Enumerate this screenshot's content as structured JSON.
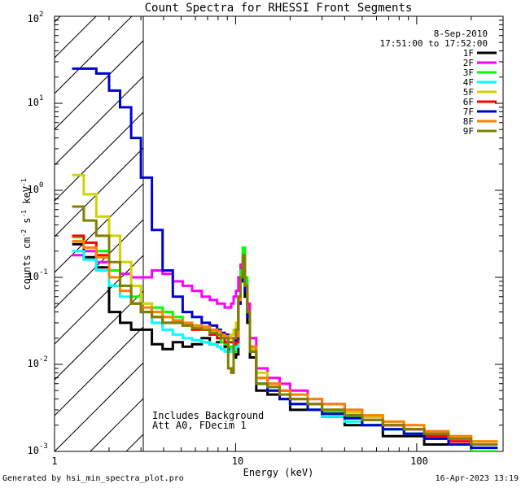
{
  "chart_data": {
    "type": "line",
    "title": "Count Spectra for RHESSI Front Segments",
    "xlabel": "Energy (keV)",
    "ylabel": "counts cm-2 s-1 keV-1",
    "ylabel_parts": {
      "base": "counts cm",
      "exp1": "-2",
      "mid1": " s",
      "exp2": "-1",
      "mid2": " keV",
      "exp3": "-1"
    },
    "x_scale": "log",
    "y_scale": "log",
    "xlim": [
      1,
      300
    ],
    "ylim": [
      0.001,
      100
    ],
    "x_tick_labels": [
      {
        "value": 1,
        "label": "1"
      },
      {
        "value": 10,
        "label": "10"
      },
      {
        "value": 100,
        "label": "100"
      }
    ],
    "y_tick_labels": [
      {
        "value": 0.001,
        "base": "10",
        "exp": "-3"
      },
      {
        "value": 0.01,
        "base": "10",
        "exp": "-2"
      },
      {
        "value": 0.1,
        "base": "10",
        "exp": "-1"
      },
      {
        "value": 1,
        "base": "10",
        "exp": "0"
      },
      {
        "value": 10,
        "base": "10",
        "exp": "1"
      },
      {
        "value": 100,
        "base": "10",
        "exp": "2"
      }
    ],
    "hatched_region_x": [
      1,
      3
    ],
    "date": "8-Sep-2010",
    "time_range": "17:51:00 to 17:52:00",
    "annotations": [
      "Includes Background",
      "Att A0, FDecim 1"
    ],
    "series": [
      {
        "name": "1F",
        "color": "#000000",
        "values": [
          0.24,
          0.17,
          0.13,
          0.04,
          0.03,
          0.025,
          0.025,
          0.017,
          0.015,
          0.018,
          0.016,
          0.017,
          0.02,
          0.017,
          0.018,
          0.02,
          0.016,
          0.015,
          0.015,
          0.012,
          0.013,
          0.05,
          0.09,
          0.11,
          0.06,
          0.03,
          0.012,
          0.005,
          0.0045,
          0.004,
          0.003,
          0.003,
          0.0025,
          0.002,
          0.002,
          0.0015,
          0.0015,
          0.0012,
          0.0012,
          0.001
        ]
      },
      {
        "name": "2F",
        "color": "#ff00ff",
        "values": [
          0.18,
          0.2,
          0.15,
          0.12,
          0.11,
          0.1,
          0.1,
          0.12,
          0.11,
          0.09,
          0.08,
          0.07,
          0.06,
          0.055,
          0.05,
          0.05,
          0.045,
          0.045,
          0.05,
          0.06,
          0.07,
          0.1,
          0.14,
          0.16,
          0.09,
          0.05,
          0.02,
          0.009,
          0.007,
          0.006,
          0.005,
          0.004,
          0.0035,
          0.003,
          0.0025,
          0.002,
          0.0018,
          0.0015,
          0.0013,
          0.0012
        ]
      },
      {
        "name": "3F",
        "color": "#00ff00",
        "values": [
          0.29,
          0.25,
          0.2,
          0.12,
          0.08,
          0.06,
          0.05,
          0.045,
          0.04,
          0.035,
          0.03,
          0.028,
          0.025,
          0.022,
          0.02,
          0.018,
          0.017,
          0.016,
          0.015,
          0.014,
          0.016,
          0.06,
          0.12,
          0.22,
          0.1,
          0.04,
          0.015,
          0.006,
          0.005,
          0.004,
          0.0035,
          0.003,
          0.0028,
          0.0025,
          0.002,
          0.0018,
          0.0016,
          0.0014,
          0.0012,
          0.001
        ]
      },
      {
        "name": "4F",
        "color": "#00ffff",
        "values": [
          0.2,
          0.16,
          0.12,
          0.08,
          0.06,
          0.05,
          0.04,
          0.03,
          0.025,
          0.022,
          0.02,
          0.019,
          0.018,
          0.017,
          0.016,
          0.015,
          0.014,
          0.014,
          0.015,
          0.015,
          0.016,
          0.05,
          0.1,
          0.15,
          0.08,
          0.04,
          0.015,
          0.006,
          0.005,
          0.004,
          0.0035,
          0.003,
          0.0025,
          0.0022,
          0.002,
          0.0018,
          0.0016,
          0.0014,
          0.0012,
          0.0011
        ]
      },
      {
        "name": "5F",
        "color": "#d2d200",
        "values": [
          1.5,
          0.9,
          0.5,
          0.3,
          0.15,
          0.08,
          0.05,
          0.04,
          0.035,
          0.03,
          0.028,
          0.026,
          0.025,
          0.024,
          0.022,
          0.021,
          0.02,
          0.02,
          0.022,
          0.025,
          0.03,
          0.06,
          0.1,
          0.16,
          0.08,
          0.04,
          0.015,
          0.008,
          0.006,
          0.005,
          0.004,
          0.0035,
          0.003,
          0.0028,
          0.0025,
          0.002,
          0.0018,
          0.0016,
          0.0014,
          0.0013
        ]
      },
      {
        "name": "6F",
        "color": "#ff0000",
        "values": [
          0.3,
          0.25,
          0.18,
          0.1,
          0.07,
          0.05,
          0.04,
          0.035,
          0.03,
          0.03,
          0.028,
          0.025,
          0.025,
          0.022,
          0.02,
          0.02,
          0.018,
          0.018,
          0.018,
          0.017,
          0.018,
          0.05,
          0.1,
          0.16,
          0.08,
          0.04,
          0.016,
          0.007,
          0.006,
          0.005,
          0.004,
          0.0035,
          0.003,
          0.0026,
          0.0023,
          0.002,
          0.0018,
          0.0015,
          0.0013,
          0.0012
        ]
      },
      {
        "name": "7F",
        "color": "#0000d2",
        "values": [
          25,
          25,
          22,
          14,
          9,
          4,
          1.4,
          0.35,
          0.12,
          0.06,
          0.04,
          0.035,
          0.03,
          0.028,
          0.025,
          0.023,
          0.022,
          0.02,
          0.02,
          0.019,
          0.02,
          0.05,
          0.09,
          0.13,
          0.07,
          0.035,
          0.014,
          0.006,
          0.005,
          0.004,
          0.0035,
          0.003,
          0.0027,
          0.0024,
          0.002,
          0.0018,
          0.0016,
          0.0014,
          0.0012,
          0.0011
        ]
      },
      {
        "name": "8F",
        "color": "#ff8000",
        "values": [
          0.26,
          0.22,
          0.17,
          0.1,
          0.07,
          0.05,
          0.045,
          0.04,
          0.035,
          0.032,
          0.03,
          0.028,
          0.027,
          0.025,
          0.024,
          0.022,
          0.021,
          0.02,
          0.02,
          0.02,
          0.021,
          0.055,
          0.1,
          0.17,
          0.08,
          0.04,
          0.016,
          0.007,
          0.006,
          0.005,
          0.0045,
          0.004,
          0.0035,
          0.003,
          0.0026,
          0.0022,
          0.002,
          0.0017,
          0.0015,
          0.0013
        ]
      },
      {
        "name": "9F",
        "color": "#808000",
        "values": [
          0.65,
          0.45,
          0.3,
          0.15,
          0.08,
          0.05,
          0.04,
          0.035,
          0.03,
          0.03,
          0.028,
          0.026,
          0.025,
          0.023,
          0.022,
          0.02,
          0.02,
          0.009,
          0.008,
          0.02,
          0.025,
          0.06,
          0.1,
          0.18,
          0.08,
          0.04,
          0.014,
          0.006,
          0.0055,
          0.0045,
          0.004,
          0.0035,
          0.003,
          0.0026,
          0.0023,
          0.002,
          0.0018,
          0.0016,
          0.0014,
          0.0012
        ]
      }
    ],
    "x_energy_edges": [
      1.25,
      1.45,
      1.7,
      2.0,
      2.3,
      2.65,
      3.0,
      3.45,
      3.95,
      4.5,
      5.1,
      5.75,
      6.5,
      7.2,
      7.9,
      8.3,
      8.7,
      9.1,
      9.45,
      9.75,
      10.05,
      10.35,
      10.65,
      10.95,
      11.25,
      11.6,
      12.0,
      13,
      15,
      17.5,
      20,
      25,
      30,
      40,
      50,
      65,
      85,
      110,
      150,
      200,
      280
    ]
  },
  "footer": {
    "generated_by": "Generated by hsi_min_spectra_plot.pro",
    "timestamp": "16-Apr-2023 13:19"
  }
}
